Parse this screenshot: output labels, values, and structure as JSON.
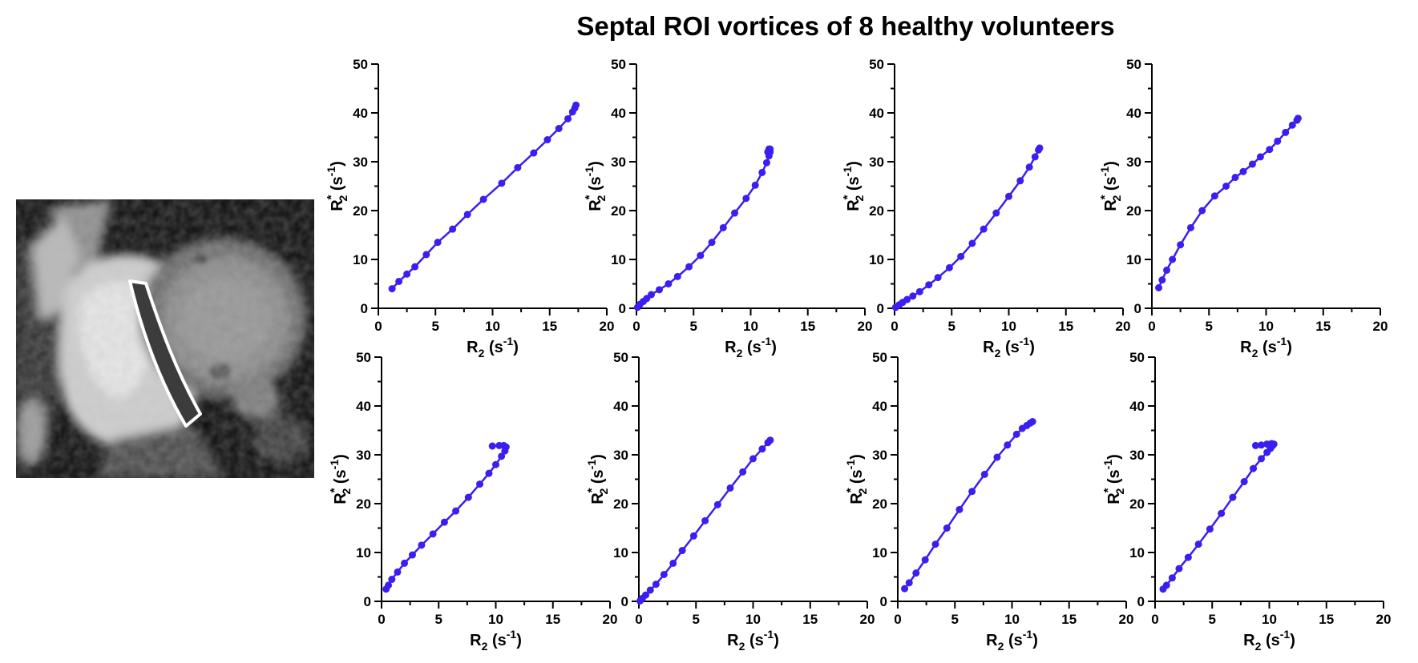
{
  "title": "Septal ROI vortices of 8 healthy volunteers",
  "colors": {
    "series": "#3a1ff0",
    "axis": "#000000"
  },
  "image": {
    "name": "cardiac-mri-short-axis",
    "roi_outline_color": "#ffffff"
  },
  "axis_text": {
    "x_main": "R",
    "x_sub": "2",
    "x_unit_open": " (s",
    "x_unit_sup": "-1",
    "x_unit_close": ")",
    "y_main": "R",
    "y_sub": "2",
    "y_sup": "*",
    "y_unit_open": " (s",
    "y_unit_sup": "-1",
    "y_unit_close": ")"
  },
  "chart_data": [
    {
      "type": "line",
      "xlabel": "R2 (s-1)",
      "ylabel": "R2* (s-1)",
      "xlim": [
        0,
        20
      ],
      "ylim": [
        0,
        50
      ],
      "xticks": [
        0,
        5,
        10,
        15,
        20
      ],
      "yticks": [
        0,
        10,
        20,
        30,
        40,
        50
      ],
      "x": [
        1.2,
        1.8,
        2.5,
        3.2,
        4.2,
        5.2,
        6.5,
        7.8,
        9.2,
        10.8,
        12.2,
        13.6,
        14.8,
        15.8,
        16.6,
        17.0,
        17.2,
        17.3
      ],
      "y": [
        4.0,
        5.5,
        7.0,
        8.5,
        11.0,
        13.5,
        16.2,
        19.2,
        22.3,
        25.6,
        28.8,
        31.8,
        34.5,
        36.8,
        38.8,
        40.2,
        41.0,
        41.6
      ]
    },
    {
      "type": "line",
      "xlabel": "R2 (s-1)",
      "ylabel": "R2* (s-1)",
      "xlim": [
        0,
        20
      ],
      "ylim": [
        0,
        50
      ],
      "xticks": [
        0,
        5,
        10,
        15,
        20
      ],
      "yticks": [
        0,
        10,
        20,
        30,
        40,
        50
      ],
      "x": [
        0.1,
        0.3,
        0.6,
        0.9,
        1.3,
        2.0,
        2.8,
        3.6,
        4.6,
        5.6,
        6.6,
        7.6,
        8.6,
        9.6,
        10.4,
        11.0,
        11.4,
        11.6,
        11.7,
        11.7,
        11.6,
        11.5
      ],
      "y": [
        0.2,
        0.8,
        1.4,
        2.0,
        2.8,
        3.8,
        5.0,
        6.5,
        8.5,
        10.8,
        13.5,
        16.5,
        19.5,
        22.5,
        25.2,
        27.8,
        29.8,
        31.2,
        32.0,
        32.6,
        32.6,
        32.0
      ]
    },
    {
      "type": "line",
      "xlabel": "R2 (s-1)",
      "ylabel": "R2* (s-1)",
      "xlim": [
        0,
        20
      ],
      "ylim": [
        0,
        50
      ],
      "xticks": [
        0,
        5,
        10,
        15,
        20
      ],
      "yticks": [
        0,
        10,
        20,
        30,
        40,
        50
      ],
      "x": [
        0.1,
        0.4,
        0.7,
        1.1,
        1.6,
        2.2,
        3.0,
        3.8,
        4.8,
        5.8,
        6.8,
        7.8,
        8.9,
        10.0,
        11.0,
        11.8,
        12.3,
        12.6,
        12.7
      ],
      "y": [
        0.2,
        0.7,
        1.2,
        1.8,
        2.5,
        3.4,
        4.8,
        6.3,
        8.3,
        10.6,
        13.3,
        16.2,
        19.5,
        22.9,
        26.1,
        28.9,
        31.0,
        32.4,
        32.8
      ]
    },
    {
      "type": "line",
      "xlabel": "R2 (s-1)",
      "ylabel": "R2* (s-1)",
      "xlim": [
        0,
        20
      ],
      "ylim": [
        0,
        50
      ],
      "xticks": [
        0,
        5,
        10,
        15,
        20
      ],
      "yticks": [
        0,
        10,
        20,
        30,
        40,
        50
      ],
      "x": [
        0.6,
        0.9,
        1.3,
        1.8,
        2.5,
        3.4,
        4.4,
        5.5,
        6.5,
        7.3,
        8.0,
        8.8,
        9.5,
        10.3,
        11.0,
        11.7,
        12.3,
        12.7,
        12.8
      ],
      "y": [
        4.2,
        5.8,
        7.8,
        10.0,
        13.0,
        16.5,
        20.0,
        23.0,
        25.0,
        26.8,
        28.0,
        29.5,
        31.0,
        32.5,
        34.2,
        36.0,
        37.5,
        38.5,
        38.9
      ]
    },
    {
      "type": "line",
      "xlabel": "R2 (s-1)",
      "ylabel": "R2* (s-1)",
      "xlim": [
        0,
        20
      ],
      "ylim": [
        0,
        50
      ],
      "xticks": [
        0,
        5,
        10,
        15,
        20
      ],
      "yticks": [
        0,
        10,
        20,
        30,
        40,
        50
      ],
      "x": [
        0.4,
        0.6,
        0.9,
        1.4,
        2.0,
        2.7,
        3.5,
        4.5,
        5.5,
        6.5,
        7.6,
        8.6,
        9.4,
        10.0,
        10.5,
        10.8,
        10.9,
        10.7,
        10.3,
        9.7
      ],
      "y": [
        2.5,
        3.3,
        4.5,
        6.0,
        7.8,
        9.5,
        11.5,
        13.8,
        16.2,
        18.5,
        21.3,
        24.0,
        26.2,
        28.0,
        29.7,
        30.8,
        31.6,
        31.9,
        31.9,
        31.8
      ]
    },
    {
      "type": "line",
      "xlabel": "R2 (s-1)",
      "ylabel": "R2* (s-1)",
      "xlim": [
        0,
        20
      ],
      "ylim": [
        0,
        50
      ],
      "xticks": [
        0,
        5,
        10,
        15,
        20
      ],
      "yticks": [
        0,
        10,
        20,
        30,
        40,
        50
      ],
      "x": [
        0.1,
        0.3,
        0.6,
        1.0,
        1.5,
        2.2,
        3.0,
        3.8,
        4.8,
        5.8,
        6.9,
        8.0,
        9.1,
        10.0,
        10.8,
        11.3,
        11.5
      ],
      "y": [
        0.1,
        0.6,
        1.3,
        2.3,
        3.5,
        5.5,
        7.8,
        10.4,
        13.4,
        16.5,
        19.8,
        23.2,
        26.5,
        29.2,
        31.2,
        32.5,
        33.0
      ]
    },
    {
      "type": "line",
      "xlabel": "R2 (s-1)",
      "ylabel": "R2* (s-1)",
      "xlim": [
        0,
        20
      ],
      "ylim": [
        0,
        50
      ],
      "xticks": [
        0,
        5,
        10,
        15,
        20
      ],
      "yticks": [
        0,
        10,
        20,
        30,
        40,
        50
      ],
      "x": [
        0.6,
        1.0,
        1.6,
        2.4,
        3.3,
        4.3,
        5.4,
        6.5,
        7.6,
        8.7,
        9.6,
        10.4,
        10.9,
        11.3,
        11.6,
        11.8
      ],
      "y": [
        2.6,
        3.8,
        5.8,
        8.5,
        11.7,
        15.0,
        18.8,
        22.5,
        26.0,
        29.5,
        32.0,
        34.2,
        35.4,
        36.0,
        36.5,
        36.8
      ]
    },
    {
      "type": "line",
      "xlabel": "R2 (s-1)",
      "ylabel": "R2* (s-1)",
      "xlim": [
        0,
        20
      ],
      "ylim": [
        0,
        50
      ],
      "xticks": [
        0,
        5,
        10,
        15,
        20
      ],
      "yticks": [
        0,
        10,
        20,
        30,
        40,
        50
      ],
      "x": [
        0.7,
        1.0,
        1.5,
        2.1,
        2.9,
        3.8,
        4.8,
        5.8,
        6.8,
        7.8,
        8.6,
        9.3,
        9.8,
        10.1,
        10.3,
        10.4,
        10.2,
        9.8,
        9.3,
        8.8
      ],
      "y": [
        2.5,
        3.3,
        4.8,
        6.7,
        9.0,
        11.7,
        14.8,
        18.0,
        21.3,
        24.5,
        27.2,
        29.2,
        30.5,
        31.3,
        31.9,
        32.2,
        32.3,
        32.2,
        32.0,
        31.9
      ]
    }
  ]
}
